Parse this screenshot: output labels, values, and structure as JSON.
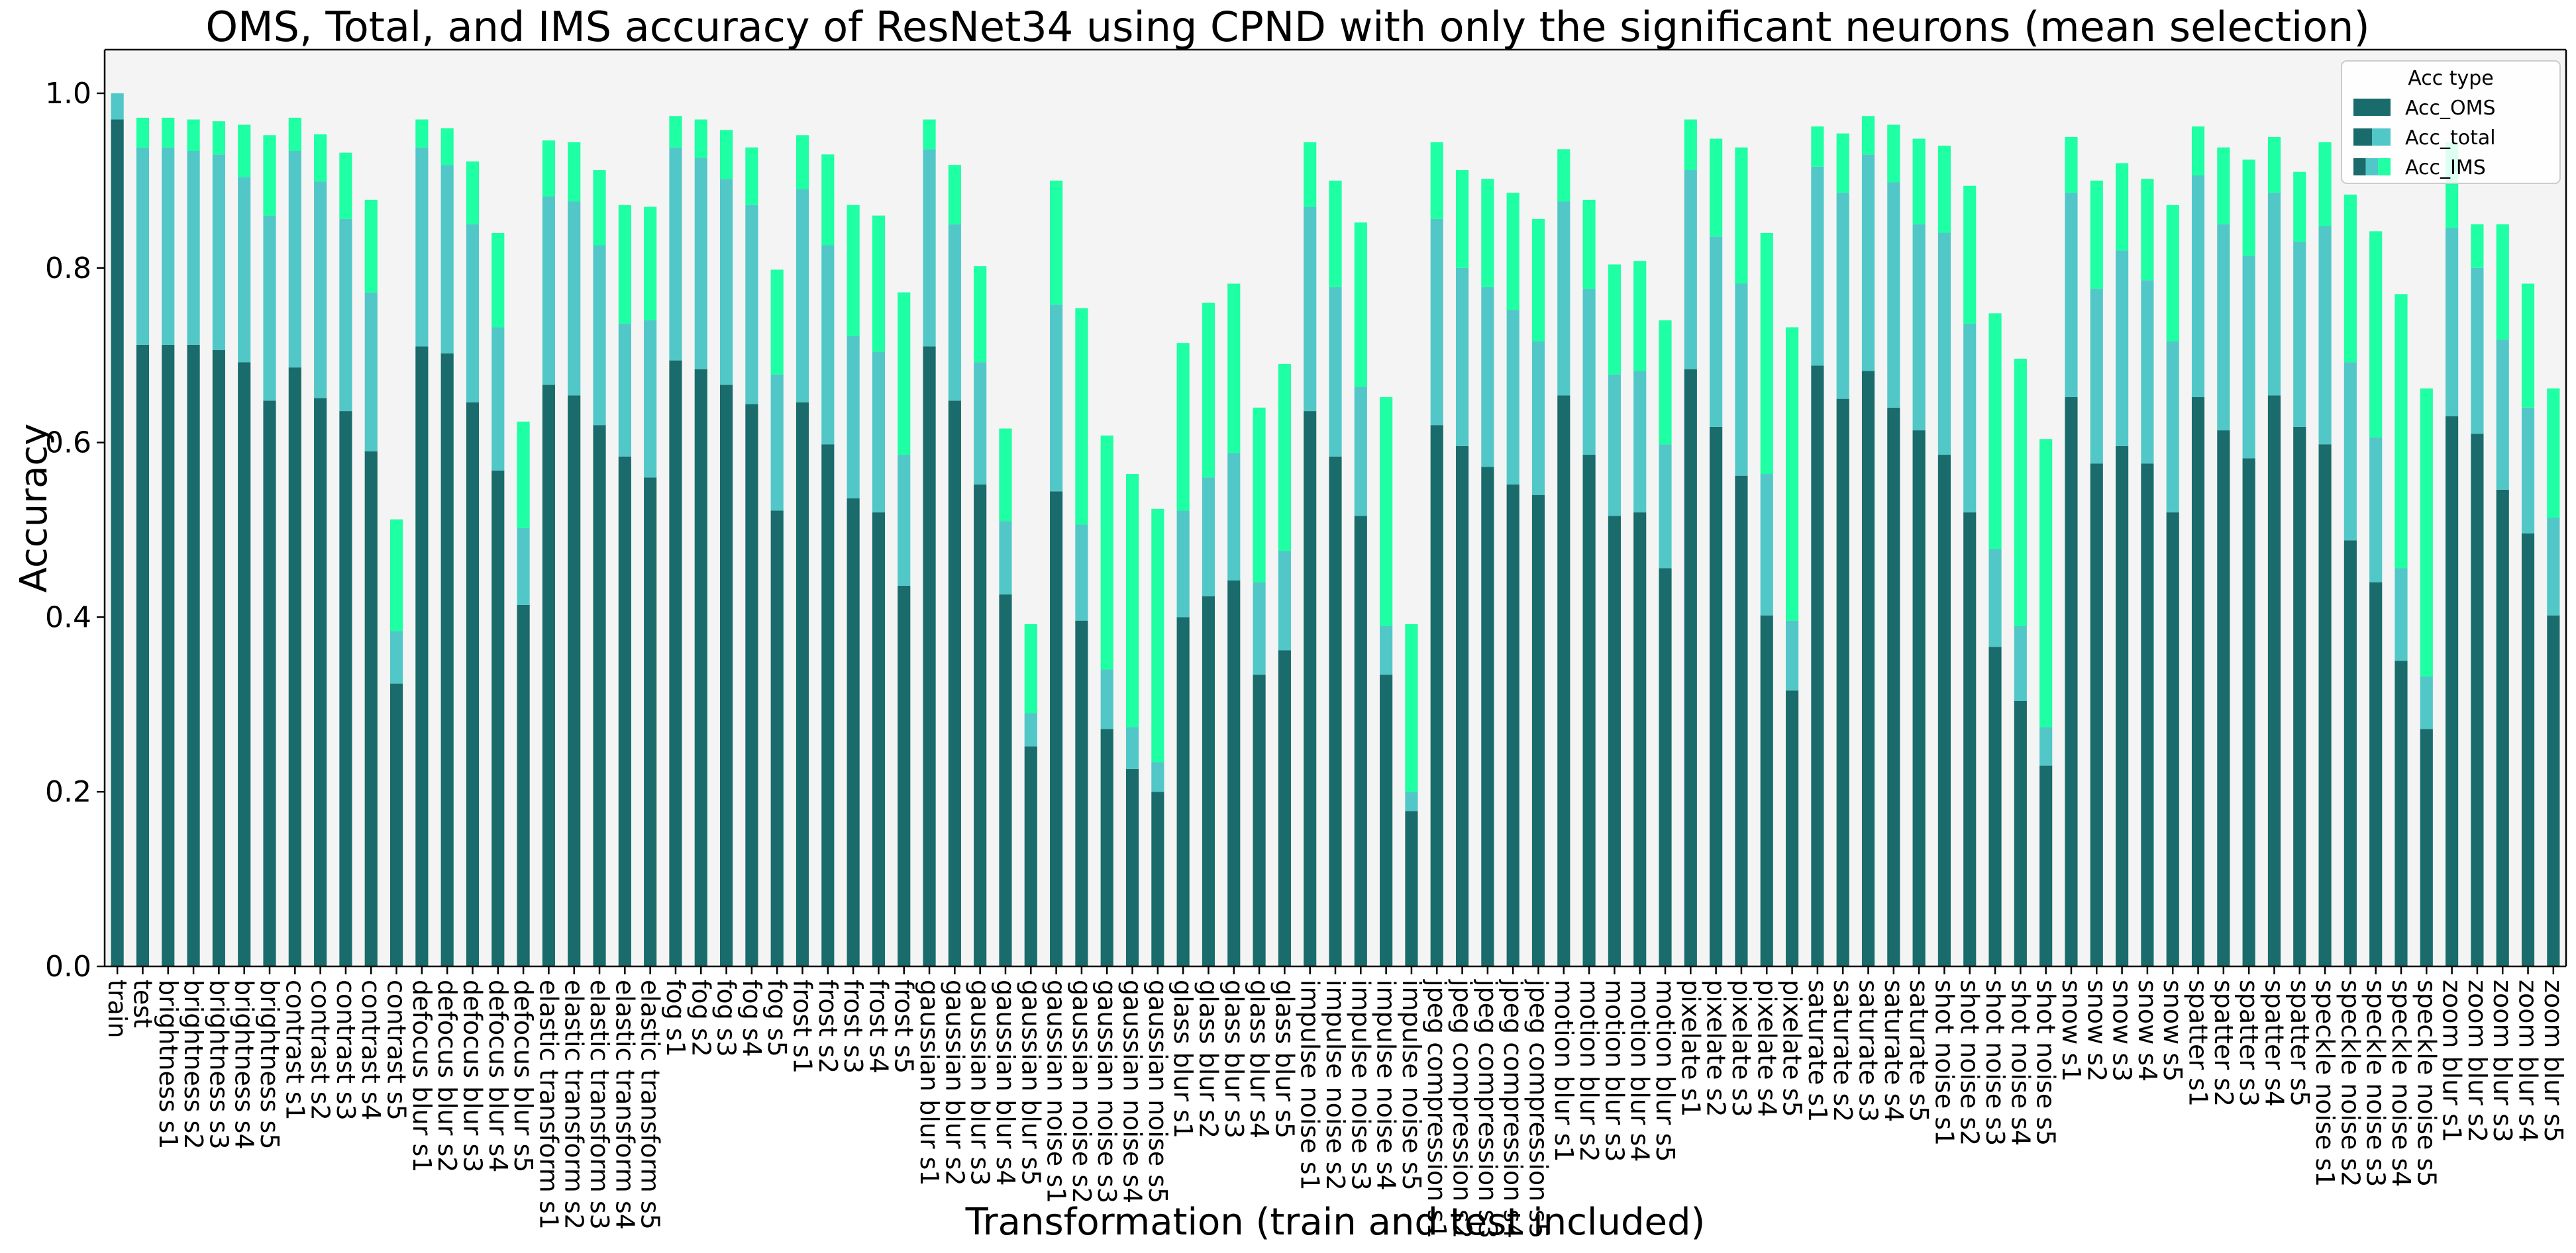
{
  "chart_data": {
    "type": "bar",
    "stacked": true,
    "title": "OMS, Total,  and IMS accuracy of ResNet34 using CPND with only the significant neurons (mean selection)",
    "xlabel": "Transformation (train and test included)",
    "ylabel": "Accuracy",
    "ylim": [
      0,
      1.05
    ],
    "yticks": [
      0.0,
      0.2,
      0.4,
      0.6,
      0.8,
      1.0
    ],
    "ytick_labels": [
      "0.0",
      "0.2",
      "0.4",
      "0.6",
      "0.8",
      "1.0"
    ],
    "grid": false,
    "legend": {
      "title": "Acc type",
      "placement": "top-right",
      "entries": [
        "Acc_OMS",
        "Acc_total",
        "Acc_IMS"
      ]
    },
    "colors": {
      "Acc_OMS": "#1a6b6b",
      "Acc_total": "#52c7c7",
      "Acc_IMS": "#1fffa3",
      "plot_background": "#f4f4f4"
    },
    "categories": [
      "train",
      "test",
      "brightness s1",
      "brightness s2",
      "brightness s3",
      "brightness s4",
      "brightness s5",
      "contrast s1",
      "contrast s2",
      "contrast s3",
      "contrast s4",
      "contrast s5",
      "defocus blur s1",
      "defocus blur s2",
      "defocus blur s3",
      "defocus blur s4",
      "defocus blur s5",
      "elastic transform s1",
      "elastic transform s2",
      "elastic transform s3",
      "elastic transform s4",
      "elastic transform s5",
      "fog s1",
      "fog s2",
      "fog s3",
      "fog s4",
      "fog s5",
      "frost s1",
      "frost s2",
      "frost s3",
      "frost s4",
      "frost s5",
      "gaussian blur s1",
      "gaussian blur s2",
      "gaussian blur s3",
      "gaussian blur s4",
      "gaussian blur s5",
      "gaussian noise s1",
      "gaussian noise s2",
      "gaussian noise s3",
      "gaussian noise s4",
      "gaussian noise s5",
      "glass blur s1",
      "glass blur s2",
      "glass blur s3",
      "glass blur s4",
      "glass blur s5",
      "impulse noise s1",
      "impulse noise s2",
      "impulse noise s3",
      "impulse noise s4",
      "impulse noise s5",
      "jpeg compression s1",
      "jpeg compression s2",
      "jpeg compression s3",
      "jpeg compression s4",
      "jpeg compression s5",
      "motion blur s1",
      "motion blur s2",
      "motion blur s3",
      "motion blur s4",
      "motion blur s5",
      "pixelate s1",
      "pixelate s2",
      "pixelate s3",
      "pixelate s4",
      "pixelate s5",
      "saturate s1",
      "saturate s2",
      "saturate s3",
      "saturate s4",
      "saturate s5",
      "shot noise s1",
      "shot noise s2",
      "shot noise s3",
      "shot noise s4",
      "shot noise s5",
      "snow s1",
      "snow s2",
      "snow s3",
      "snow s4",
      "snow s5",
      "spatter s1",
      "spatter s2",
      "spatter s3",
      "spatter s4",
      "spatter s5",
      "speckle noise s1",
      "speckle noise s2",
      "speckle noise s3",
      "speckle noise s4",
      "speckle noise s5",
      "zoom blur s1",
      "zoom blur s2",
      "zoom blur s3",
      "zoom blur s4",
      "zoom blur s5"
    ],
    "series": [
      {
        "name": "Acc_OMS",
        "values": [
          0.97,
          0.712,
          0.712,
          0.712,
          0.706,
          0.692,
          0.648,
          0.686,
          0.651,
          0.636,
          0.59,
          0.324,
          0.71,
          0.702,
          0.646,
          0.568,
          0.414,
          0.666,
          0.654,
          0.62,
          0.584,
          0.56,
          0.694,
          0.684,
          0.666,
          0.644,
          0.522,
          0.646,
          0.598,
          0.536,
          0.52,
          0.436,
          0.71,
          0.648,
          0.552,
          0.426,
          0.252,
          0.544,
          0.396,
          0.272,
          0.226,
          0.2,
          0.4,
          0.424,
          0.442,
          0.334,
          0.362,
          0.636,
          0.584,
          0.516,
          0.334,
          0.178,
          0.62,
          0.596,
          0.572,
          0.552,
          0.54,
          0.654,
          0.586,
          0.516,
          0.52,
          0.456,
          0.684,
          0.618,
          0.562,
          0.402,
          0.316,
          0.688,
          0.65,
          0.682,
          0.64,
          0.614,
          0.586,
          0.52,
          0.366,
          0.304,
          0.23,
          0.652,
          0.576,
          0.596,
          0.576,
          0.52,
          0.652,
          0.614,
          0.582,
          0.654,
          0.618,
          0.598,
          0.488,
          0.44,
          0.35,
          0.272,
          0.63,
          0.61,
          0.546,
          0.496,
          0.402
        ]
      },
      {
        "name": "Acc_total",
        "values": [
          0.03,
          0.226,
          0.226,
          0.222,
          0.224,
          0.212,
          0.212,
          0.248,
          0.248,
          0.22,
          0.182,
          0.06,
          0.228,
          0.216,
          0.204,
          0.164,
          0.088,
          0.216,
          0.222,
          0.206,
          0.152,
          0.18,
          0.244,
          0.242,
          0.236,
          0.228,
          0.156,
          0.244,
          0.228,
          0.186,
          0.184,
          0.15,
          0.226,
          0.202,
          0.14,
          0.084,
          0.038,
          0.214,
          0.11,
          0.068,
          0.048,
          0.034,
          0.122,
          0.136,
          0.146,
          0.106,
          0.114,
          0.234,
          0.194,
          0.148,
          0.056,
          0.022,
          0.236,
          0.204,
          0.206,
          0.2,
          0.176,
          0.222,
          0.19,
          0.162,
          0.162,
          0.142,
          0.228,
          0.218,
          0.22,
          0.162,
          0.08,
          0.228,
          0.236,
          0.248,
          0.258,
          0.236,
          0.254,
          0.216,
          0.112,
          0.086,
          0.044,
          0.234,
          0.2,
          0.224,
          0.21,
          0.196,
          0.254,
          0.236,
          0.232,
          0.232,
          0.212,
          0.25,
          0.204,
          0.166,
          0.106,
          0.06,
          0.216,
          0.19,
          0.172,
          0.144,
          0.112
        ]
      },
      {
        "name": "Acc_IMS",
        "values": [
          0.0,
          0.034,
          0.034,
          0.036,
          0.038,
          0.06,
          0.092,
          0.038,
          0.054,
          0.076,
          0.106,
          0.128,
          0.032,
          0.042,
          0.072,
          0.108,
          0.122,
          0.064,
          0.068,
          0.086,
          0.136,
          0.13,
          0.036,
          0.044,
          0.056,
          0.066,
          0.12,
          0.062,
          0.104,
          0.15,
          0.156,
          0.186,
          0.034,
          0.068,
          0.11,
          0.106,
          0.102,
          0.142,
          0.248,
          0.268,
          0.29,
          0.29,
          0.192,
          0.2,
          0.194,
          0.2,
          0.214,
          0.074,
          0.122,
          0.188,
          0.262,
          0.192,
          0.088,
          0.112,
          0.124,
          0.134,
          0.14,
          0.06,
          0.102,
          0.126,
          0.126,
          0.142,
          0.058,
          0.112,
          0.156,
          0.276,
          0.336,
          0.046,
          0.068,
          0.044,
          0.066,
          0.098,
          0.1,
          0.158,
          0.27,
          0.306,
          0.33,
          0.064,
          0.124,
          0.1,
          0.116,
          0.156,
          0.056,
          0.088,
          0.11,
          0.064,
          0.08,
          0.096,
          0.192,
          0.236,
          0.314,
          0.33,
          0.098,
          0.05,
          0.132,
          0.142,
          0.148
        ]
      }
    ]
  }
}
